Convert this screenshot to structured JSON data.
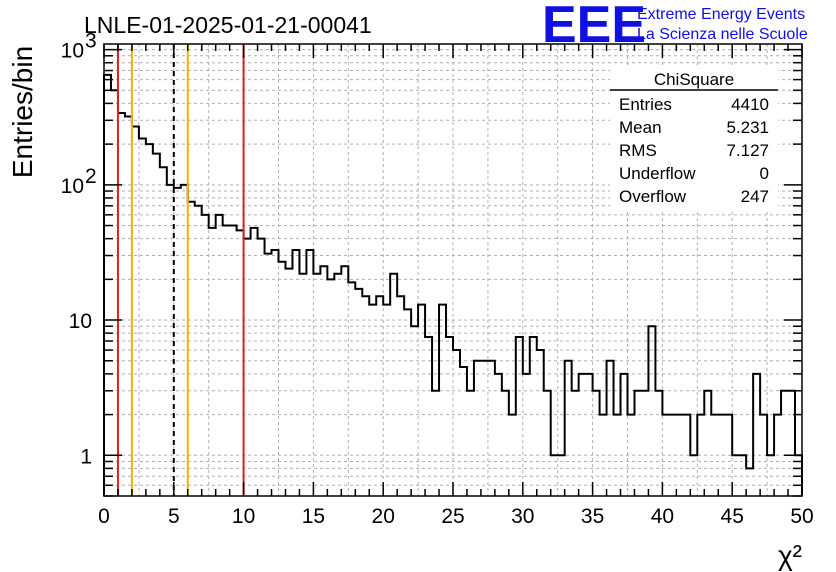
{
  "chart_data": {
    "type": "bar",
    "title": "LNLE-01-2025-01-21-00041",
    "xlabel": "χ²",
    "ylabel": "Entries/bin",
    "log_y": true,
    "xlim": [
      0,
      50
    ],
    "ylim": [
      0.5,
      1100
    ],
    "grid": true,
    "bin_width": 0.5,
    "x_ticks": [
      "0",
      "5",
      "10",
      "15",
      "20",
      "25",
      "30",
      "35",
      "40",
      "45",
      "50"
    ],
    "y_ticks": [
      {
        "value": 1,
        "label": "1"
      },
      {
        "value": 10,
        "label": "10"
      },
      {
        "value": 100,
        "label": "10",
        "exp": "2"
      },
      {
        "value": 1000,
        "label": "10",
        "exp": "3"
      }
    ],
    "values": [
      650,
      500,
      340,
      320,
      270,
      220,
      200,
      170,
      135,
      100,
      95,
      100,
      75,
      70,
      60,
      48,
      60,
      50,
      50,
      46,
      40,
      48,
      40,
      31,
      33,
      27,
      24,
      33,
      22,
      33,
      22,
      25,
      20,
      22,
      25,
      19,
      17,
      15,
      13,
      15,
      13,
      22,
      15,
      12,
      9,
      13,
      7.5,
      3,
      13,
      7.5,
      6,
      4.5,
      3,
      5,
      5,
      5,
      4,
      3,
      2,
      7.5,
      4,
      7.5,
      6,
      3,
      1,
      1,
      5,
      3,
      4,
      4,
      3,
      2,
      5,
      2,
      4,
      2,
      3,
      3,
      9,
      3,
      2,
      2,
      2,
      2,
      1,
      2,
      3,
      2,
      2,
      2,
      1,
      1,
      0.8,
      4,
      2,
      1,
      2,
      3,
      3,
      1
    ],
    "vertical_lines": [
      {
        "x": 1,
        "color": "#e02020",
        "style": "solid"
      },
      {
        "x": 2,
        "color": "#f0b400",
        "style": "solid"
      },
      {
        "x": 5,
        "color": "#000000",
        "style": "dashed"
      },
      {
        "x": 6,
        "color": "#f0b400",
        "style": "solid"
      },
      {
        "x": 10,
        "color": "#e02020",
        "style": "solid"
      }
    ],
    "stats_box": {
      "name": "ChiSquare",
      "rows": [
        {
          "label": "Entries",
          "value": "4410"
        },
        {
          "label": "Mean",
          "value": "5.231"
        },
        {
          "label": "RMS",
          "value": "7.127"
        },
        {
          "label": "Underflow",
          "value": "0"
        },
        {
          "label": "Overflow",
          "value": "247"
        }
      ]
    }
  },
  "logo": {
    "text": "EEE",
    "line1": "Extreme Energy Events",
    "line2": "La Scienza nelle Scuole",
    "color": "#1010e0"
  }
}
